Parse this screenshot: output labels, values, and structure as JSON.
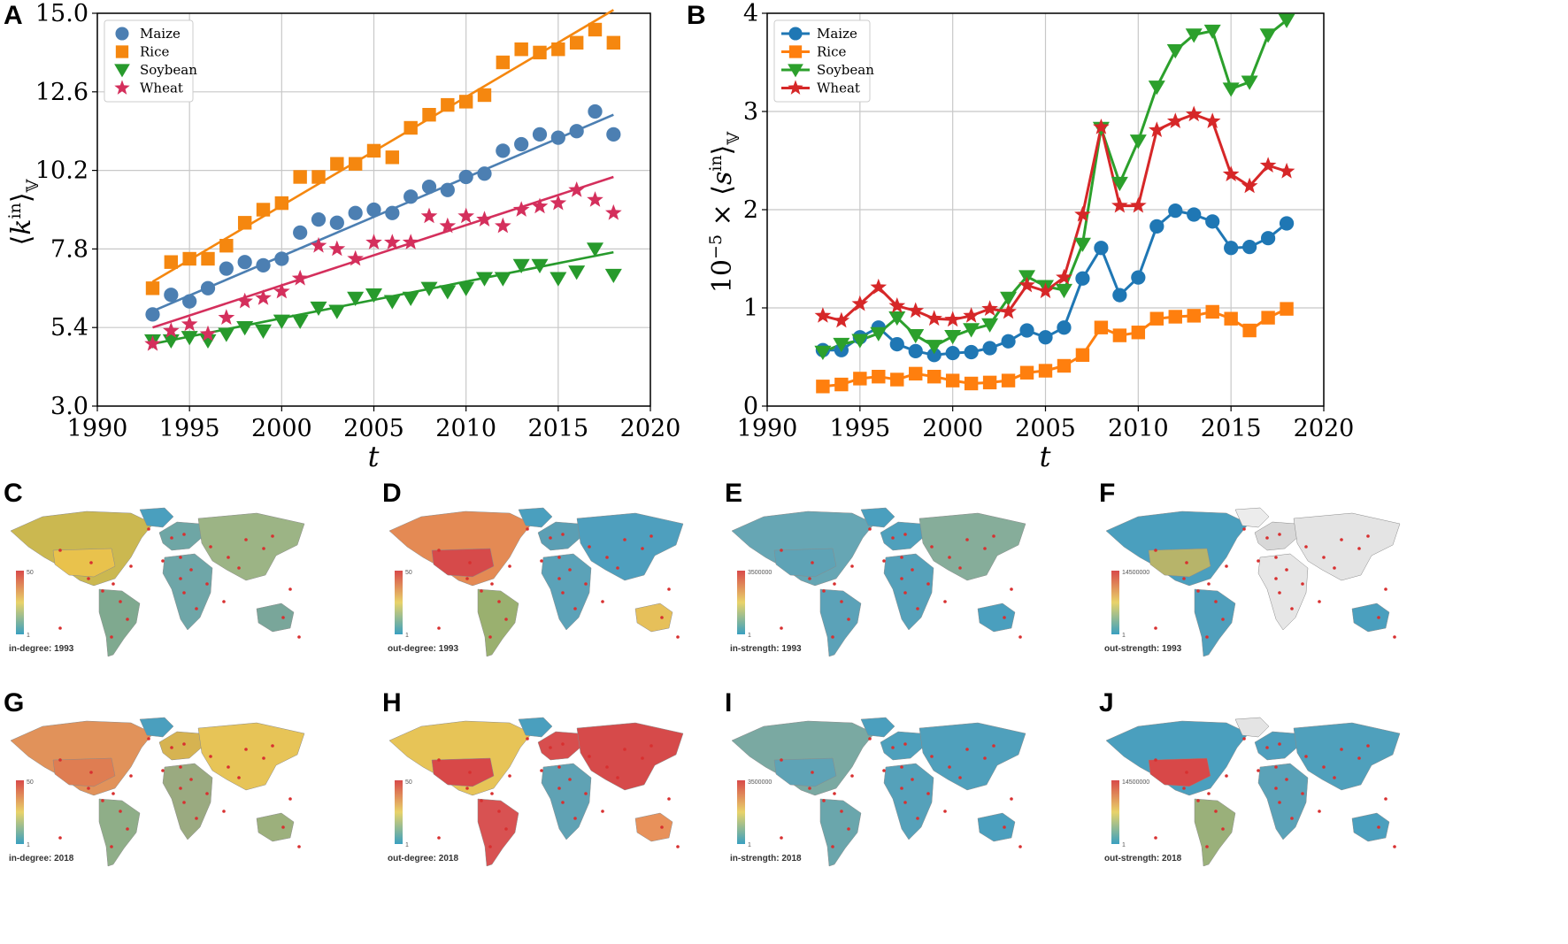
{
  "chart_data": [
    {
      "panel": "A",
      "type": "scatter",
      "ylabel": "⟨k^in⟩_V",
      "xlabel": "t",
      "xlim": [
        1990,
        2020
      ],
      "ylim": [
        3.0,
        15.0
      ],
      "xticks": [
        "1990",
        "1995",
        "2000",
        "2005",
        "2010",
        "2015",
        "2020"
      ],
      "yticks": [
        "3.0",
        "5.4",
        "7.8",
        "10.2",
        "12.6",
        "15.0"
      ],
      "grid": true,
      "legend": "top-left",
      "x": [
        1993,
        1994,
        1995,
        1996,
        1997,
        1998,
        1999,
        2000,
        2001,
        2002,
        2003,
        2004,
        2005,
        2006,
        2007,
        2008,
        2009,
        2010,
        2011,
        2012,
        2013,
        2014,
        2015,
        2016,
        2017,
        2018
      ],
      "series": [
        {
          "name": "Maize",
          "color": "#4c7fb2",
          "marker": "circle",
          "values": [
            5.8,
            6.4,
            6.2,
            6.6,
            7.2,
            7.4,
            7.3,
            7.5,
            8.3,
            8.7,
            8.6,
            8.9,
            9.0,
            8.9,
            9.4,
            9.7,
            9.6,
            10.0,
            10.1,
            10.8,
            11.0,
            11.3,
            11.2,
            11.4,
            12.0,
            11.3
          ],
          "fit": [
            5.9,
            11.9
          ]
        },
        {
          "name": "Rice",
          "color": "#f5870f",
          "marker": "square",
          "values": [
            6.6,
            7.4,
            7.5,
            7.5,
            7.9,
            8.6,
            9.0,
            9.2,
            10.0,
            10.0,
            10.4,
            10.4,
            10.8,
            10.6,
            11.5,
            11.9,
            12.2,
            12.3,
            12.5,
            13.5,
            13.9,
            13.8,
            13.9,
            14.1,
            14.5,
            14.1
          ],
          "fit": [
            6.8,
            15.1
          ]
        },
        {
          "name": "Soybean",
          "color": "#279a2c",
          "marker": "triangle-down",
          "values": [
            5.0,
            5.0,
            5.1,
            5.0,
            5.2,
            5.4,
            5.3,
            5.6,
            5.6,
            6.0,
            5.9,
            6.3,
            6.4,
            6.2,
            6.3,
            6.6,
            6.5,
            6.6,
            6.9,
            6.9,
            7.3,
            7.3,
            6.9,
            7.1,
            7.8,
            7.0
          ],
          "fit": [
            4.9,
            7.7
          ]
        },
        {
          "name": "Wheat",
          "color": "#d42f5c",
          "marker": "star",
          "values": [
            4.9,
            5.3,
            5.5,
            5.2,
            5.7,
            6.2,
            6.3,
            6.5,
            6.9,
            7.9,
            7.8,
            7.5,
            8.0,
            8.0,
            8.0,
            8.8,
            8.5,
            8.8,
            8.7,
            8.5,
            9.0,
            9.1,
            9.2,
            9.6,
            9.3,
            8.9
          ],
          "fit": [
            5.4,
            10.0
          ]
        }
      ]
    },
    {
      "panel": "B",
      "type": "line",
      "ylabel": "10^-5 × ⟨s^in⟩_V",
      "xlabel": "t",
      "xlim": [
        1990,
        2020
      ],
      "ylim": [
        0,
        4
      ],
      "xticks": [
        "1990",
        "1995",
        "2000",
        "2005",
        "2010",
        "2015",
        "2020"
      ],
      "yticks": [
        "0",
        "1",
        "2",
        "3",
        "4"
      ],
      "grid": true,
      "legend": "top-left",
      "x": [
        1993,
        1994,
        1995,
        1996,
        1997,
        1998,
        1999,
        2000,
        2001,
        2002,
        2003,
        2004,
        2005,
        2006,
        2007,
        2008,
        2009,
        2010,
        2011,
        2012,
        2013,
        2014,
        2015,
        2016,
        2017,
        2018
      ],
      "series": [
        {
          "name": "Maize",
          "color": "#1f77b4",
          "marker": "circle",
          "values": [
            0.57,
            0.57,
            0.7,
            0.8,
            0.63,
            0.56,
            0.52,
            0.54,
            0.55,
            0.59,
            0.66,
            0.77,
            0.7,
            0.8,
            1.3,
            1.61,
            1.13,
            1.31,
            1.83,
            1.99,
            1.95,
            1.88,
            1.61,
            1.62,
            1.71,
            1.86
          ]
        },
        {
          "name": "Rice",
          "color": "#ff7f0e",
          "marker": "square",
          "values": [
            0.2,
            0.22,
            0.28,
            0.3,
            0.27,
            0.33,
            0.3,
            0.26,
            0.23,
            0.24,
            0.26,
            0.34,
            0.36,
            0.41,
            0.52,
            0.8,
            0.72,
            0.75,
            0.89,
            0.91,
            0.92,
            0.96,
            0.89,
            0.77,
            0.9,
            0.99
          ]
        },
        {
          "name": "Soybean",
          "color": "#2ca02c",
          "marker": "triangle-down",
          "values": [
            0.55,
            0.63,
            0.67,
            0.74,
            0.9,
            0.72,
            0.61,
            0.71,
            0.78,
            0.83,
            1.1,
            1.32,
            1.22,
            1.18,
            1.65,
            2.83,
            2.27,
            2.7,
            3.25,
            3.62,
            3.78,
            3.82,
            3.23,
            3.3,
            3.78,
            3.93
          ]
        },
        {
          "name": "Wheat",
          "color": "#d62728",
          "marker": "star",
          "values": [
            0.92,
            0.87,
            1.04,
            1.21,
            1.02,
            0.97,
            0.89,
            0.88,
            0.92,
            0.99,
            0.96,
            1.23,
            1.17,
            1.31,
            1.95,
            2.84,
            2.04,
            2.04,
            2.81,
            2.9,
            2.97,
            2.9,
            2.36,
            2.24,
            2.45,
            2.39
          ]
        }
      ]
    }
  ],
  "maps": [
    {
      "letter": "C",
      "label": "in-degree: 1993",
      "scale_max": "50",
      "scale_min": "1"
    },
    {
      "letter": "D",
      "label": "out-degree: 1993",
      "scale_max": "50",
      "scale_min": "1"
    },
    {
      "letter": "E",
      "label": "in-strength: 1993",
      "scale_max": "3500000",
      "scale_min": "1"
    },
    {
      "letter": "F",
      "label": "out-strength: 1993",
      "scale_max": "14500000",
      "scale_min": "1"
    },
    {
      "letter": "G",
      "label": "in-degree: 2018",
      "scale_max": "50",
      "scale_min": "1"
    },
    {
      "letter": "H",
      "label": "out-degree: 2018",
      "scale_max": "50",
      "scale_min": "1"
    },
    {
      "letter": "I",
      "label": "in-strength: 2018",
      "scale_max": "3500000",
      "scale_min": "1"
    },
    {
      "letter": "J",
      "label": "out-strength: 2018",
      "scale_max": "14500000",
      "scale_min": "1"
    }
  ]
}
